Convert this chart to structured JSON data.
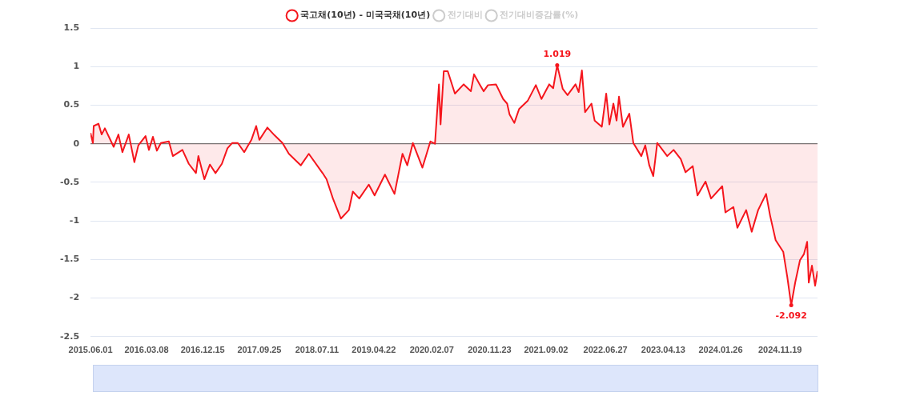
{
  "chart_data": {
    "type": "area",
    "x": [
      "2015-06-01",
      "2015-06-13",
      "2015-06-17",
      "2015-07-11",
      "2015-07-27",
      "2015-08-12",
      "2015-09-25",
      "2015-10-19",
      "2015-11-08",
      "2015-12-10",
      "2016-01-07",
      "2016-01-27",
      "2016-03-03",
      "2016-03-20",
      "2016-04-09",
      "2016-04-29",
      "2016-05-19",
      "2016-06-28",
      "2016-07-18",
      "2016-09-04",
      "2016-10-06",
      "2016-11-11",
      "2016-11-23",
      "2016-12-23",
      "2017-01-20",
      "2017-02-17",
      "2017-03-21",
      "2017-04-18",
      "2017-05-12",
      "2017-06-09",
      "2017-07-11",
      "2017-08-16",
      "2017-09-09",
      "2017-09-25",
      "2017-11-04",
      "2017-12-10",
      "2018-01-19",
      "2018-02-20",
      "2018-04-21",
      "2018-05-31",
      "2018-08-08",
      "2018-08-28",
      "2018-09-29",
      "2018-11-08",
      "2018-12-18",
      "2019-01-07",
      "2019-02-08",
      "2019-03-28",
      "2019-04-26",
      "2019-06-17",
      "2019-08-04",
      "2019-09-13",
      "2019-10-07",
      "2019-11-04",
      "2019-12-22",
      "2020-01-31",
      "2020-02-23",
      "2020-03-14",
      "2020-03-22",
      "2020-04-07",
      "2020-04-27",
      "2020-06-02",
      "2020-07-16",
      "2020-08-21",
      "2020-09-06",
      "2020-10-04",
      "2020-10-24",
      "2020-11-15",
      "2020-12-25",
      "2021-01-30",
      "2021-02-19",
      "2021-03-03",
      "2021-03-27",
      "2021-04-20",
      "2021-06-03",
      "2021-07-13",
      "2021-08-10",
      "2021-09-18",
      "2021-10-08",
      "2021-10-28",
      "2021-11-25",
      "2021-12-19",
      "2022-01-28",
      "2022-02-13",
      "2022-03-01",
      "2022-03-17",
      "2022-04-18",
      "2022-05-04",
      "2022-06-09",
      "2022-07-01",
      "2022-07-17",
      "2022-08-06",
      "2022-08-22",
      "2022-09-03",
      "2022-09-23",
      "2022-10-25",
      "2022-11-14",
      "2022-12-24",
      "2023-01-13",
      "2023-02-02",
      "2023-02-22",
      "2023-03-14",
      "2023-05-03",
      "2023-06-04",
      "2023-07-10",
      "2023-08-03",
      "2023-09-08",
      "2023-10-02",
      "2023-11-11",
      "2023-12-09",
      "2024-02-03",
      "2024-02-19",
      "2024-03-30",
      "2024-04-19",
      "2024-06-02",
      "2024-06-30",
      "2024-08-01",
      "2024-09-10",
      "2024-09-30",
      "2024-10-28",
      "2024-12-05",
      "2024-12-25",
      "2025-01-14",
      "2025-02-03",
      "2025-02-27",
      "2025-03-19",
      "2025-04-04",
      "2025-04-12",
      "2025-04-28",
      "2025-05-14",
      "2025-05-26"
    ],
    "series": [
      {
        "name": "국고채(10년) - 미국국채(10년)",
        "color": "#f5161d",
        "values": [
          0.14,
          0.01,
          0.23,
          0.26,
          0.12,
          0.2,
          -0.04,
          0.12,
          -0.11,
          0.12,
          -0.24,
          -0.02,
          0.1,
          -0.08,
          0.09,
          -0.09,
          0.01,
          0.03,
          -0.16,
          -0.08,
          -0.26,
          -0.38,
          -0.16,
          -0.46,
          -0.27,
          -0.38,
          -0.26,
          -0.06,
          0.01,
          0.01,
          -0.11,
          0.05,
          0.23,
          0.05,
          0.21,
          0.11,
          0.01,
          -0.13,
          -0.28,
          -0.13,
          -0.38,
          -0.46,
          -0.71,
          -0.97,
          -0.86,
          -0.62,
          -0.71,
          -0.53,
          -0.67,
          -0.4,
          -0.65,
          -0.13,
          -0.28,
          0.01,
          -0.31,
          0.03,
          0.0,
          0.77,
          0.25,
          0.94,
          0.94,
          0.65,
          0.77,
          0.68,
          0.9,
          0.77,
          0.68,
          0.76,
          0.77,
          0.58,
          0.52,
          0.38,
          0.27,
          0.45,
          0.56,
          0.76,
          0.58,
          0.77,
          0.72,
          1.019,
          0.71,
          0.63,
          0.77,
          0.67,
          0.95,
          0.41,
          0.52,
          0.3,
          0.22,
          0.65,
          0.25,
          0.52,
          0.3,
          0.61,
          0.22,
          0.39,
          0.01,
          -0.16,
          -0.02,
          -0.28,
          -0.42,
          0.01,
          -0.16,
          -0.08,
          -0.2,
          -0.37,
          -0.29,
          -0.67,
          -0.49,
          -0.71,
          -0.55,
          -0.89,
          -0.82,
          -1.09,
          -0.86,
          -1.14,
          -0.86,
          -0.65,
          -0.93,
          -1.25,
          -1.4,
          -1.72,
          -2.092,
          -1.8,
          -1.51,
          -1.43,
          -1.27,
          -1.8,
          -1.58,
          -1.84,
          -1.65
        ]
      },
      {
        "name": "전기대비",
        "color": "#cccccc",
        "values": [
          null,
          null,
          null,
          null,
          null,
          null,
          null,
          null,
          null,
          null,
          null,
          null,
          null,
          null,
          null,
          null,
          null,
          null,
          null,
          null,
          null,
          null,
          null,
          null,
          null,
          null,
          null,
          null,
          null,
          null,
          null,
          null,
          null,
          null,
          null,
          null,
          null,
          null,
          null,
          null,
          null,
          null,
          null,
          null,
          null,
          null,
          null,
          null,
          null,
          null,
          null,
          null,
          null,
          null,
          null,
          null,
          null,
          null,
          null,
          null,
          null,
          null,
          null,
          null,
          null,
          null,
          null,
          null,
          null,
          null,
          null,
          null,
          null,
          null,
          null,
          null,
          null,
          null,
          null,
          null,
          null,
          null,
          null,
          null,
          null,
          null,
          null,
          null,
          null,
          null,
          null,
          null,
          null,
          null,
          null,
          null,
          null,
          null,
          null,
          null,
          null,
          null,
          null,
          null,
          null,
          null,
          null,
          null,
          null,
          null,
          null,
          null,
          null,
          null,
          null,
          null,
          null,
          null,
          null,
          null,
          null,
          null,
          null,
          null,
          null,
          null,
          null,
          null,
          null,
          null,
          null
        ]
      },
      {
        "name": "전기대비증감률(%)",
        "color": "#cccccc",
        "values": [
          null,
          null,
          null,
          null,
          null,
          null,
          null,
          null,
          null,
          null,
          null,
          null,
          null,
          null,
          null,
          null,
          null,
          null,
          null,
          null,
          null,
          null,
          null,
          null,
          null,
          null,
          null,
          null,
          null,
          null,
          null,
          null,
          null,
          null,
          null,
          null,
          null,
          null,
          null,
          null,
          null,
          null,
          null,
          null,
          null,
          null,
          null,
          null,
          null,
          null,
          null,
          null,
          null,
          null,
          null,
          null,
          null,
          null,
          null,
          null,
          null,
          null,
          null,
          null,
          null,
          null,
          null,
          null,
          null,
          null,
          null,
          null,
          null,
          null,
          null,
          null,
          null,
          null,
          null,
          null,
          null,
          null,
          null,
          null,
          null,
          null,
          null,
          null,
          null,
          null,
          null,
          null,
          null,
          null,
          null,
          null,
          null,
          null,
          null,
          null,
          null,
          null,
          null,
          null,
          null,
          null,
          null,
          null,
          null,
          null,
          null,
          null,
          null,
          null,
          null,
          null,
          null,
          null,
          null,
          null,
          null,
          null,
          null,
          null,
          null,
          null,
          null,
          null,
          null,
          null,
          null
        ]
      }
    ],
    "xlim": [
      "2015-06-01",
      "2025-05-26"
    ],
    "xticks": [
      {
        "value": "2015-06-01",
        "label": "2015.06.01"
      },
      {
        "value": "2016-03-08",
        "label": "2016.03.08"
      },
      {
        "value": "2016-12-15",
        "label": "2016.12.15"
      },
      {
        "value": "2017-09-25",
        "label": "2017.09.25"
      },
      {
        "value": "2018-07-11",
        "label": "2018.07.11"
      },
      {
        "value": "2019-04-22",
        "label": "2019.04.22"
      },
      {
        "value": "2020-02-07",
        "label": "2020.02.07"
      },
      {
        "value": "2020-11-23",
        "label": "2020.11.23"
      },
      {
        "value": "2021-09-02",
        "label": "2021.09.02"
      },
      {
        "value": "2022-06-27",
        "label": "2022.06.27"
      },
      {
        "value": "2023-04-13",
        "label": "2023.04.13"
      },
      {
        "value": "2024-01-26",
        "label": "2024.01.26"
      },
      {
        "value": "2024-11-19",
        "label": "2024.11.19"
      }
    ],
    "ylim": [
      -2.5,
      1.5
    ],
    "yticks": [
      -2.5,
      -2,
      -1.5,
      -1,
      -0.5,
      0,
      0.5,
      1,
      1.5
    ],
    "grid": "y",
    "legend": "top",
    "marker": "none",
    "annotations": [
      {
        "text": "1.019",
        "x": "2021-10-28",
        "y": 1.019
      },
      {
        "text": "-2.092",
        "x": "2025-01-14",
        "y": -2.092
      }
    ]
  }
}
